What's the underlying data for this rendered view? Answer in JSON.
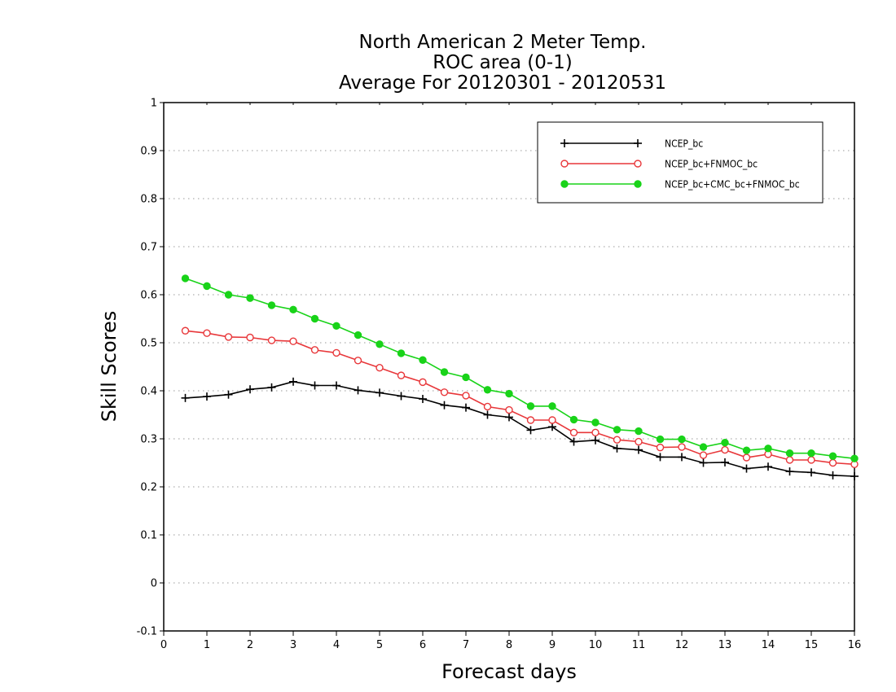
{
  "chart_data": {
    "type": "line",
    "title": [
      "North American 2 Meter Temp.",
      "ROC area (0-1)",
      "Average For 20120301 - 20120531"
    ],
    "xlabel": "Forecast days",
    "ylabel": "Skill Scores",
    "xlim": [
      0,
      16
    ],
    "ylim": [
      -0.1,
      1
    ],
    "xticks": [
      "0",
      "1",
      "2",
      "3",
      "4",
      "5",
      "6",
      "7",
      "8",
      "9",
      "10",
      "11",
      "12",
      "13",
      "14",
      "15",
      "16"
    ],
    "yticks": [
      "-0.1",
      "0",
      "0.1",
      "0.2",
      "0.3",
      "0.4",
      "0.5",
      "0.6",
      "0.7",
      "0.8",
      "0.9",
      "1"
    ],
    "grid": "horizontal dotted",
    "legend_position": "top-right",
    "x": [
      0.5,
      1,
      1.5,
      2,
      2.5,
      3,
      3.5,
      4,
      4.5,
      5,
      5.5,
      6,
      6.5,
      7,
      7.5,
      8,
      8.5,
      9,
      9.5,
      10,
      10.5,
      11,
      11.5,
      12,
      12.5,
      13,
      13.5,
      14,
      14.5,
      15,
      15.5,
      16
    ],
    "series": [
      {
        "name": "NCEP_bc",
        "color": "#000000",
        "marker": "plus",
        "values": [
          0.385,
          0.388,
          0.392,
          0.403,
          0.407,
          0.419,
          0.411,
          0.411,
          0.401,
          0.396,
          0.389,
          0.383,
          0.37,
          0.365,
          0.35,
          0.345,
          0.318,
          0.325,
          0.294,
          0.297,
          0.28,
          0.277,
          0.262,
          0.262,
          0.25,
          0.251,
          0.238,
          0.242,
          0.232,
          0.23,
          0.224,
          0.222
        ]
      },
      {
        "name": "NCEP_bc+FNMOC_bc",
        "color": "#e8373a",
        "marker": "open-circle",
        "values": [
          0.525,
          0.52,
          0.512,
          0.511,
          0.505,
          0.503,
          0.485,
          0.479,
          0.463,
          0.448,
          0.432,
          0.418,
          0.397,
          0.39,
          0.367,
          0.36,
          0.339,
          0.339,
          0.313,
          0.313,
          0.298,
          0.294,
          0.282,
          0.283,
          0.266,
          0.277,
          0.261,
          0.268,
          0.256,
          0.256,
          0.25,
          0.247
        ]
      },
      {
        "name": "NCEP_bc+CMC_bc+FNMOC_bc",
        "color": "#19d319",
        "marker": "filled-circle",
        "values": [
          0.634,
          0.618,
          0.6,
          0.593,
          0.578,
          0.569,
          0.55,
          0.535,
          0.516,
          0.497,
          0.478,
          0.464,
          0.439,
          0.428,
          0.402,
          0.394,
          0.368,
          0.368,
          0.34,
          0.334,
          0.319,
          0.316,
          0.299,
          0.299,
          0.283,
          0.292,
          0.276,
          0.28,
          0.27,
          0.27,
          0.264,
          0.259
        ]
      }
    ]
  }
}
